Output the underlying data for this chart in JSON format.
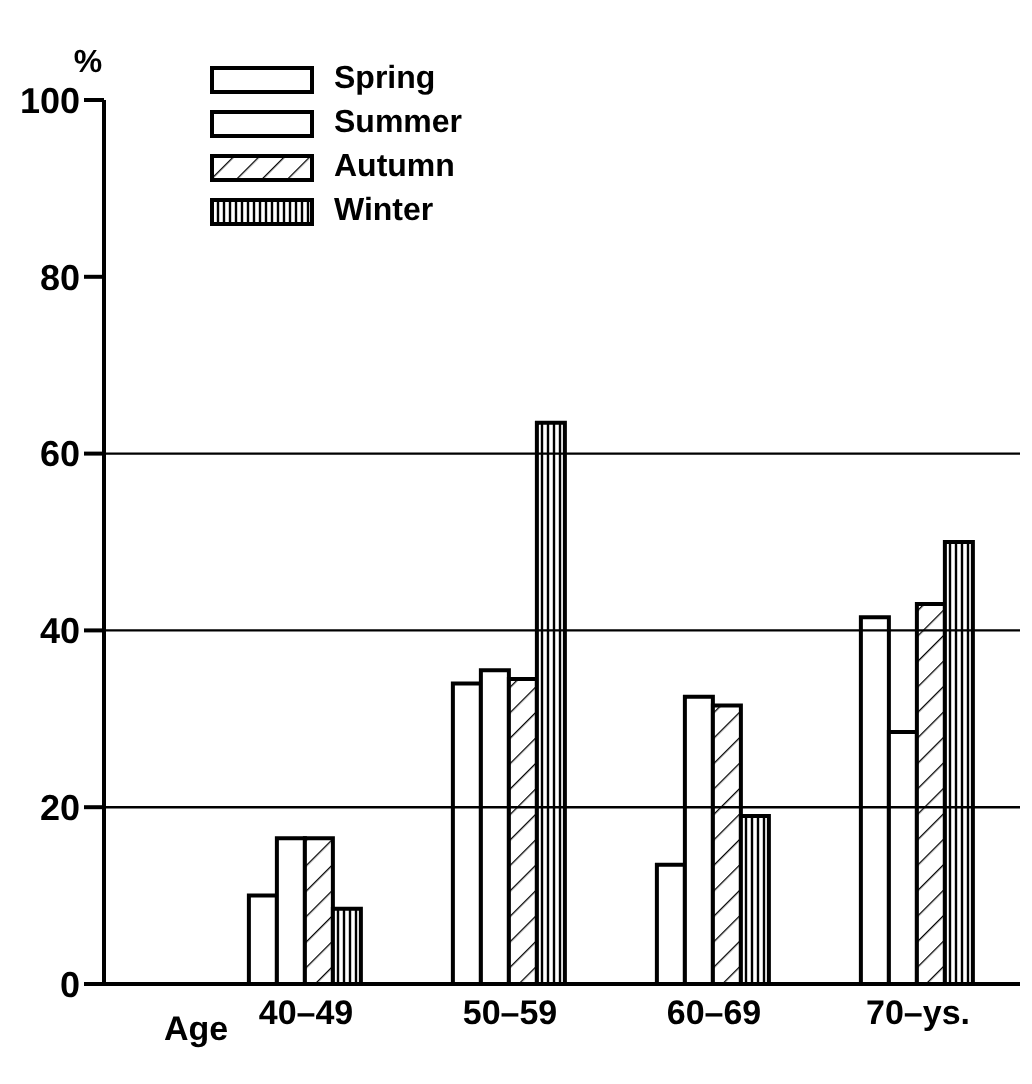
{
  "chart_data": {
    "type": "bar",
    "ylabel": "%",
    "xlabel": "Age",
    "categories": [
      "40–49",
      "50–59",
      "60–69",
      "70–ys."
    ],
    "series": [
      {
        "name": "Spring",
        "color": "#ffffff",
        "values": [
          10,
          34,
          13.5,
          41.5
        ]
      },
      {
        "name": "Summer",
        "color": "#ffffff",
        "values": [
          16.5,
          35.5,
          32.5,
          28.5
        ]
      },
      {
        "name": "Autumn",
        "color": "#000000",
        "values": [
          16.5,
          34.5,
          31.5,
          43
        ]
      },
      {
        "name": "Winter",
        "color": "#000000",
        "values": [
          8.5,
          63.5,
          19,
          50
        ]
      }
    ],
    "ylim": [
      0,
      100
    ],
    "yticks": [
      0,
      20,
      40,
      60,
      80,
      100
    ],
    "ref_lines": [
      {
        "axis": "y",
        "value": 20
      },
      {
        "axis": "y",
        "value": 40
      },
      {
        "axis": "y",
        "value": 60
      }
    ],
    "legend": "top left"
  }
}
